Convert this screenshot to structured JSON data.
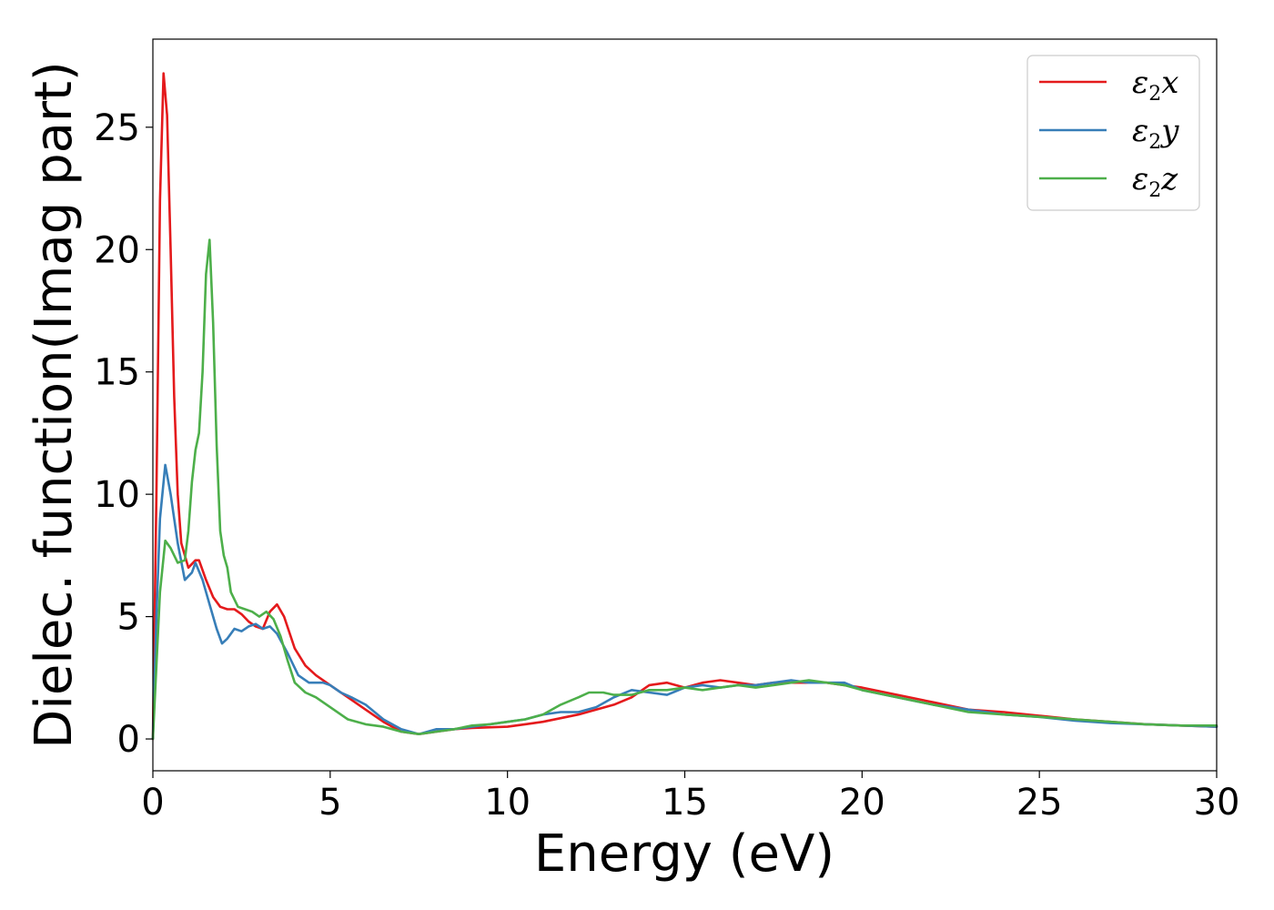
{
  "chart_data": {
    "type": "line",
    "title": "",
    "xlabel": "Energy (eV)",
    "ylabel": "Dielec. function(Imag part)",
    "xlim": [
      0,
      30
    ],
    "ylim": [
      -1.3,
      28.6
    ],
    "xticks": [
      0,
      5,
      10,
      15,
      20,
      25,
      30
    ],
    "yticks": [
      0,
      5,
      10,
      15,
      20,
      25
    ],
    "grid": false,
    "legend_position": "top-right",
    "series": [
      {
        "name": "ε2x",
        "legend": {
          "base": "ε",
          "sub": "2",
          "suffix": "x"
        },
        "color": "#e41a1c",
        "points": [
          [
            0,
            0
          ],
          [
            0.1,
            10
          ],
          [
            0.2,
            22
          ],
          [
            0.3,
            27.2
          ],
          [
            0.4,
            25.5
          ],
          [
            0.5,
            20
          ],
          [
            0.6,
            14
          ],
          [
            0.7,
            10
          ],
          [
            0.8,
            8
          ],
          [
            1.0,
            7
          ],
          [
            1.2,
            7.3
          ],
          [
            1.3,
            7.3
          ],
          [
            1.5,
            6.5
          ],
          [
            1.7,
            5.8
          ],
          [
            1.9,
            5.4
          ],
          [
            2.1,
            5.3
          ],
          [
            2.3,
            5.3
          ],
          [
            2.5,
            5.1
          ],
          [
            2.7,
            4.8
          ],
          [
            2.9,
            4.6
          ],
          [
            3.1,
            4.5
          ],
          [
            3.3,
            5.2
          ],
          [
            3.5,
            5.5
          ],
          [
            3.7,
            5.0
          ],
          [
            4.0,
            3.7
          ],
          [
            4.3,
            3.0
          ],
          [
            4.6,
            2.6
          ],
          [
            5.0,
            2.2
          ],
          [
            5.5,
            1.7
          ],
          [
            6.0,
            1.2
          ],
          [
            6.5,
            0.7
          ],
          [
            7.0,
            0.3
          ],
          [
            7.5,
            0.2
          ],
          [
            8.0,
            0.3
          ],
          [
            8.5,
            0.4
          ],
          [
            9.0,
            0.45
          ],
          [
            10.0,
            0.5
          ],
          [
            10.5,
            0.6
          ],
          [
            11.0,
            0.7
          ],
          [
            12.0,
            1.0
          ],
          [
            13.0,
            1.4
          ],
          [
            13.5,
            1.7
          ],
          [
            14.0,
            2.2
          ],
          [
            14.5,
            2.3
          ],
          [
            15.0,
            2.1
          ],
          [
            15.5,
            2.3
          ],
          [
            16.0,
            2.4
          ],
          [
            16.5,
            2.3
          ],
          [
            17.0,
            2.2
          ],
          [
            17.5,
            2.3
          ],
          [
            18.0,
            2.3
          ],
          [
            18.5,
            2.3
          ],
          [
            19.0,
            2.3
          ],
          [
            19.5,
            2.2
          ],
          [
            20.0,
            2.1
          ],
          [
            21.0,
            1.8
          ],
          [
            22.0,
            1.5
          ],
          [
            23.0,
            1.2
          ],
          [
            24.0,
            1.1
          ],
          [
            25.0,
            0.95
          ],
          [
            26.0,
            0.8
          ],
          [
            27.0,
            0.7
          ],
          [
            28.0,
            0.6
          ],
          [
            29.0,
            0.55
          ],
          [
            30.0,
            0.5
          ]
        ]
      },
      {
        "name": "ε2y",
        "legend": {
          "base": "ε",
          "sub": "2",
          "suffix": "y"
        },
        "color": "#377eb8",
        "points": [
          [
            0,
            0
          ],
          [
            0.1,
            5
          ],
          [
            0.2,
            9
          ],
          [
            0.35,
            11.2
          ],
          [
            0.5,
            10
          ],
          [
            0.7,
            8
          ],
          [
            0.9,
            6.5
          ],
          [
            1.1,
            6.8
          ],
          [
            1.2,
            7.2
          ],
          [
            1.4,
            6.5
          ],
          [
            1.6,
            5.5
          ],
          [
            1.8,
            4.5
          ],
          [
            1.95,
            3.9
          ],
          [
            2.1,
            4.1
          ],
          [
            2.3,
            4.5
          ],
          [
            2.5,
            4.4
          ],
          [
            2.7,
            4.6
          ],
          [
            2.9,
            4.7
          ],
          [
            3.1,
            4.5
          ],
          [
            3.3,
            4.6
          ],
          [
            3.5,
            4.3
          ],
          [
            3.8,
            3.5
          ],
          [
            4.1,
            2.6
          ],
          [
            4.4,
            2.3
          ],
          [
            4.8,
            2.3
          ],
          [
            5.0,
            2.2
          ],
          [
            5.3,
            1.9
          ],
          [
            5.6,
            1.7
          ],
          [
            6.0,
            1.4
          ],
          [
            6.5,
            0.8
          ],
          [
            7.0,
            0.4
          ],
          [
            7.5,
            0.2
          ],
          [
            8.0,
            0.4
          ],
          [
            8.5,
            0.4
          ],
          [
            9.0,
            0.5
          ],
          [
            9.5,
            0.6
          ],
          [
            10.0,
            0.7
          ],
          [
            10.5,
            0.8
          ],
          [
            11.0,
            1.0
          ],
          [
            11.5,
            1.1
          ],
          [
            12.0,
            1.1
          ],
          [
            12.5,
            1.3
          ],
          [
            13.0,
            1.7
          ],
          [
            13.5,
            2.0
          ],
          [
            14.0,
            1.9
          ],
          [
            14.5,
            1.8
          ],
          [
            15.0,
            2.1
          ],
          [
            15.5,
            2.2
          ],
          [
            16.0,
            2.1
          ],
          [
            16.5,
            2.2
          ],
          [
            17.0,
            2.2
          ],
          [
            17.5,
            2.3
          ],
          [
            18.0,
            2.4
          ],
          [
            18.5,
            2.3
          ],
          [
            19.0,
            2.3
          ],
          [
            19.5,
            2.3
          ],
          [
            20.0,
            2.0
          ],
          [
            21.0,
            1.7
          ],
          [
            22.0,
            1.4
          ],
          [
            23.0,
            1.2
          ],
          [
            24.0,
            1.0
          ],
          [
            25.0,
            0.9
          ],
          [
            26.0,
            0.75
          ],
          [
            27.0,
            0.65
          ],
          [
            28.0,
            0.6
          ],
          [
            29.0,
            0.55
          ],
          [
            30.0,
            0.5
          ]
        ]
      },
      {
        "name": "ε2z",
        "legend": {
          "base": "ε",
          "sub": "2",
          "suffix": "z"
        },
        "color": "#4daf4a",
        "points": [
          [
            0,
            0
          ],
          [
            0.1,
            3
          ],
          [
            0.2,
            6
          ],
          [
            0.35,
            8.1
          ],
          [
            0.5,
            7.8
          ],
          [
            0.7,
            7.2
          ],
          [
            0.9,
            7.3
          ],
          [
            1.0,
            8.5
          ],
          [
            1.1,
            10.5
          ],
          [
            1.2,
            11.8
          ],
          [
            1.3,
            12.5
          ],
          [
            1.4,
            15
          ],
          [
            1.5,
            19
          ],
          [
            1.6,
            20.4
          ],
          [
            1.7,
            17
          ],
          [
            1.8,
            12
          ],
          [
            1.9,
            8.5
          ],
          [
            2.0,
            7.5
          ],
          [
            2.1,
            7.0
          ],
          [
            2.2,
            6.0
          ],
          [
            2.4,
            5.4
          ],
          [
            2.6,
            5.3
          ],
          [
            2.8,
            5.2
          ],
          [
            3.0,
            5.0
          ],
          [
            3.2,
            5.2
          ],
          [
            3.4,
            4.9
          ],
          [
            3.6,
            4.2
          ],
          [
            3.8,
            3.2
          ],
          [
            4.0,
            2.3
          ],
          [
            4.3,
            1.9
          ],
          [
            4.6,
            1.7
          ],
          [
            5.0,
            1.3
          ],
          [
            5.5,
            0.8
          ],
          [
            6.0,
            0.6
          ],
          [
            6.5,
            0.5
          ],
          [
            7.0,
            0.3
          ],
          [
            7.5,
            0.2
          ],
          [
            8.0,
            0.3
          ],
          [
            8.5,
            0.4
          ],
          [
            9.0,
            0.55
          ],
          [
            9.5,
            0.6
          ],
          [
            10.0,
            0.7
          ],
          [
            10.5,
            0.8
          ],
          [
            11.0,
            1.0
          ],
          [
            11.5,
            1.4
          ],
          [
            12.0,
            1.7
          ],
          [
            12.3,
            1.9
          ],
          [
            12.7,
            1.9
          ],
          [
            13.0,
            1.8
          ],
          [
            13.5,
            1.8
          ],
          [
            14.0,
            2.0
          ],
          [
            14.5,
            2.0
          ],
          [
            15.0,
            2.1
          ],
          [
            15.5,
            2.0
          ],
          [
            16.0,
            2.1
          ],
          [
            16.5,
            2.2
          ],
          [
            17.0,
            2.1
          ],
          [
            17.5,
            2.2
          ],
          [
            18.0,
            2.3
          ],
          [
            18.5,
            2.4
          ],
          [
            19.0,
            2.3
          ],
          [
            19.5,
            2.2
          ],
          [
            20.0,
            2.0
          ],
          [
            21.0,
            1.7
          ],
          [
            22.0,
            1.4
          ],
          [
            23.0,
            1.1
          ],
          [
            24.0,
            1.0
          ],
          [
            25.0,
            0.9
          ],
          [
            26.0,
            0.8
          ],
          [
            27.0,
            0.7
          ],
          [
            28.0,
            0.6
          ],
          [
            29.0,
            0.55
          ],
          [
            30.0,
            0.55
          ]
        ]
      }
    ]
  }
}
